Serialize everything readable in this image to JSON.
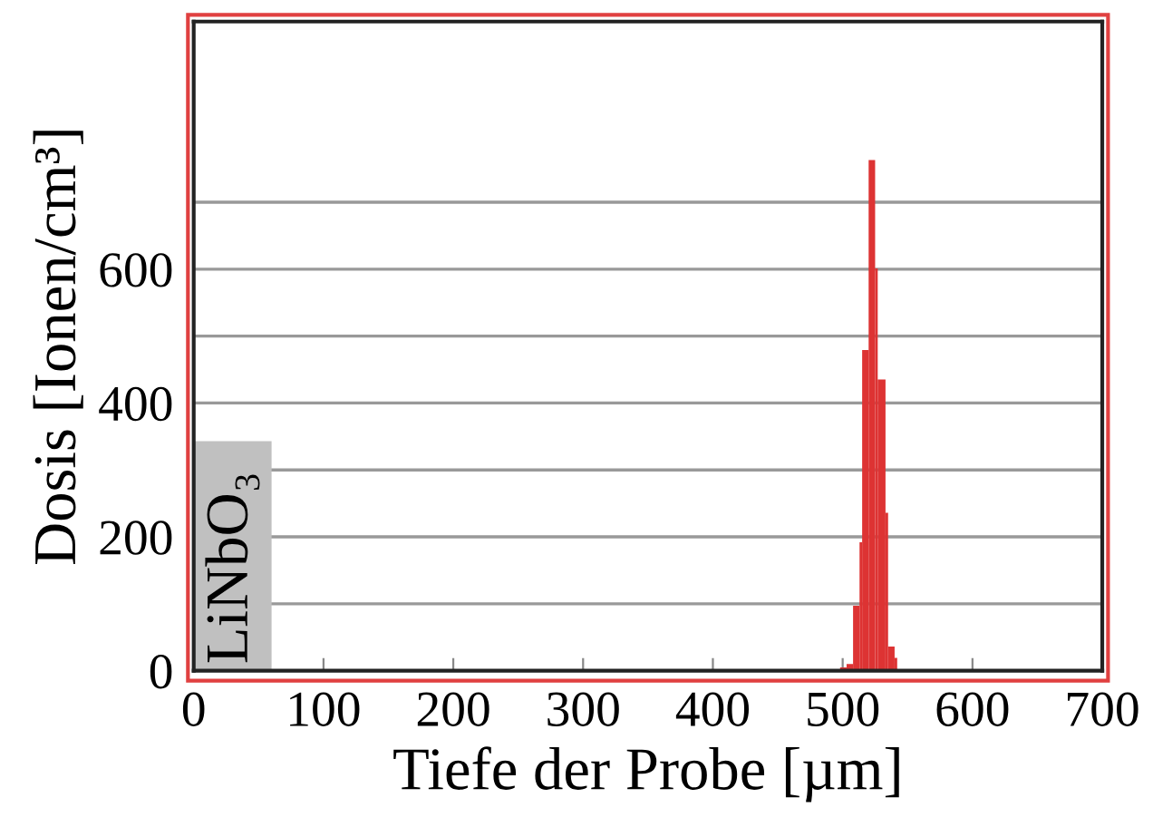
{
  "chart_data": {
    "type": "histogram",
    "xlabel": "Tiefe der Probe [µm]",
    "ylabel": "Dosis [Ionen/cm³]",
    "bins": [
      498,
      503,
      508,
      513,
      515,
      520,
      525,
      527,
      533,
      535,
      540,
      542
    ],
    "values": [
      5,
      10,
      97,
      192,
      479,
      763,
      601,
      435,
      236,
      36,
      19
    ],
    "color": "#dd3333",
    "xlim": [
      0,
      700
    ],
    "xticks": [
      0,
      100,
      200,
      300,
      400,
      500,
      600,
      700
    ],
    "ylim": [
      0,
      970
    ],
    "yticks": [
      0,
      {
        "value": 100,
        "label": null
      },
      200,
      {
        "value": 300,
        "label": null
      },
      400,
      {
        "value": 500,
        "label": null
      },
      600,
      {
        "value": 700,
        "label": null
      }
    ],
    "grid": "y",
    "annotations": [
      "LiNbO₃"
    ]
  }
}
